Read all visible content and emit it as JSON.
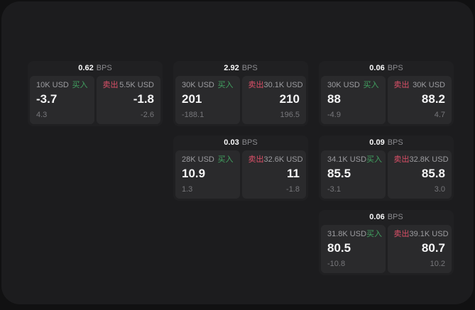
{
  "labels": {
    "bps_unit": "BPS",
    "buy": "买入",
    "sell": "卖出"
  },
  "colors": {
    "buy": "#41a160",
    "sell": "#dc5068",
    "panel_bg": "#1c1c1e",
    "card_bg": "#202022",
    "tile_bg": "#2a2a2c"
  },
  "cards": [
    {
      "bps": "0.62",
      "buy": {
        "notional": "10K USD",
        "price": "-3.7",
        "delta": "4.3"
      },
      "sell": {
        "notional": "5.5K USD",
        "price": "-1.8",
        "delta": "-2.6"
      }
    },
    {
      "bps": "2.92",
      "buy": {
        "notional": "30K USD",
        "price": "201",
        "delta": "-188.1"
      },
      "sell": {
        "notional": "30.1K USD",
        "price": "210",
        "delta": "196.5"
      }
    },
    {
      "bps": "0.06",
      "buy": {
        "notional": "30K USD",
        "price": "88",
        "delta": "-4.9"
      },
      "sell": {
        "notional": "30K USD",
        "price": "88.2",
        "delta": "4.7"
      }
    },
    {
      "bps": "0.03",
      "buy": {
        "notional": "28K USD",
        "price": "10.9",
        "delta": "1.3"
      },
      "sell": {
        "notional": "32.6K USD",
        "price": "11",
        "delta": "-1.8"
      }
    },
    {
      "bps": "0.09",
      "buy": {
        "notional": "34.1K USD",
        "price": "85.5",
        "delta": "-3.1"
      },
      "sell": {
        "notional": "32.8K USD",
        "price": "85.8",
        "delta": "3.0"
      }
    },
    {
      "bps": "0.06",
      "buy": {
        "notional": "31.8K USD",
        "price": "80.5",
        "delta": "-10.8"
      },
      "sell": {
        "notional": "39.1K USD",
        "price": "80.7",
        "delta": "10.2"
      }
    }
  ]
}
